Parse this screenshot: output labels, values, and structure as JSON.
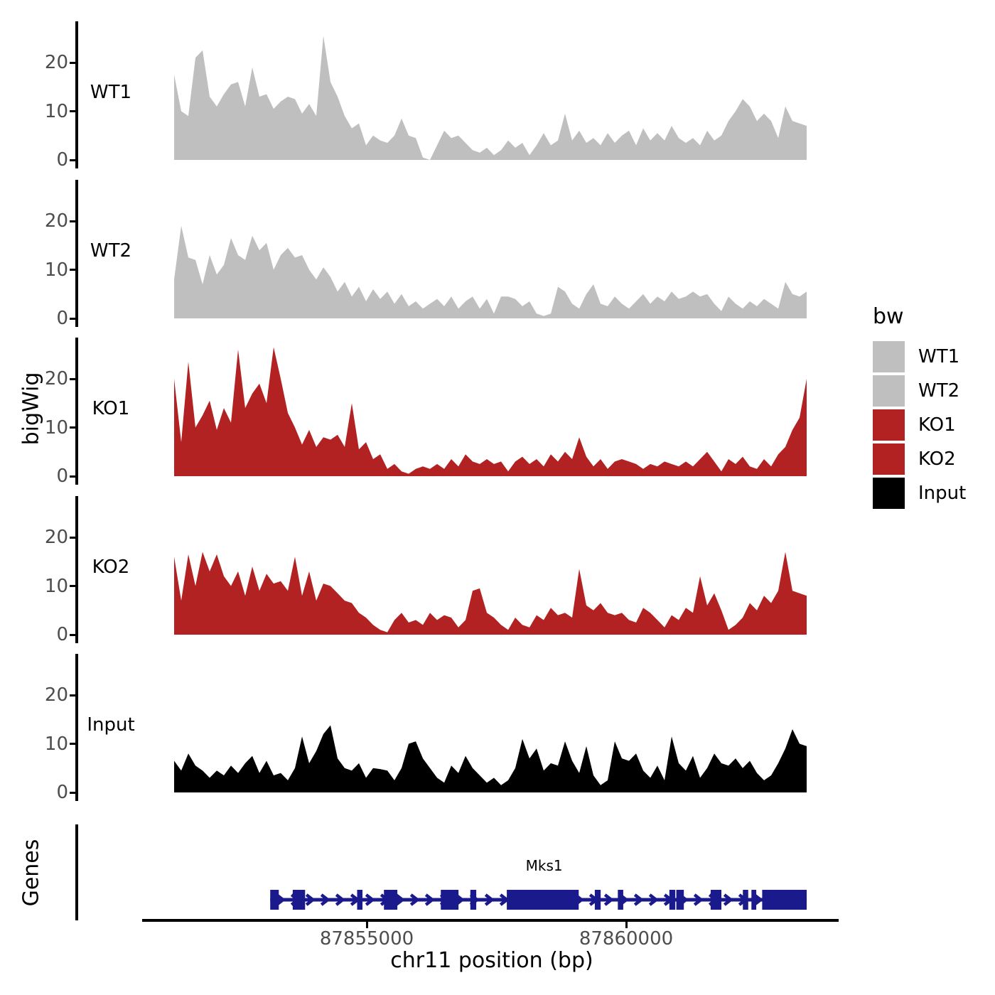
{
  "chart_data": {
    "type": "area",
    "title": "",
    "xlabel": "chr11 position (bp)",
    "ylabel": "bigWig",
    "x_ticks": [
      {
        "pos_bp": 87855000,
        "label": "87855000"
      },
      {
        "pos_bp": 87860000,
        "label": "87860000"
      }
    ],
    "x_axis_range_bp": [
      87850600,
      87864050
    ],
    "data_x_range_bp": [
      87851250,
      87863440
    ],
    "y_ticks": [
      0,
      10,
      20
    ],
    "y_tick_labels": [
      "0",
      "10",
      "20"
    ],
    "y_max": 27.7,
    "grid": "off",
    "colors": {
      "wt_gray": "#bfbfbf",
      "ko_red": "#b22222",
      "input_black": "#000000",
      "gene_navy": "#1a1a8c",
      "tick_text": "#4d4d4d"
    },
    "legend": {
      "title": "bw",
      "position": "right",
      "entries": [
        {
          "label": "WT1",
          "color": "#bfbfbf"
        },
        {
          "label": "WT2",
          "color": "#bfbfbf"
        },
        {
          "label": "KO1",
          "color": "#b22222"
        },
        {
          "label": "KO2",
          "color": "#b22222"
        },
        {
          "label": "Input",
          "color": "#000000"
        }
      ]
    },
    "tracks": [
      {
        "name": "WT1",
        "color": "#bfbfbf",
        "values": [
          17.5,
          10,
          9,
          21,
          22.5,
          13,
          11,
          13.5,
          15.5,
          16,
          11,
          19,
          13,
          13.5,
          10.5,
          12,
          13,
          12.5,
          9.5,
          11.5,
          9,
          25.5,
          16,
          13,
          9,
          6.5,
          7.5,
          3,
          5,
          4,
          3.5,
          5,
          8.5,
          5,
          4.5,
          0.5,
          0,
          3,
          6,
          4.5,
          5,
          3.5,
          2,
          1.5,
          2.5,
          1,
          2,
          4,
          2.5,
          3.5,
          1,
          3,
          5.5,
          3,
          4,
          9.5,
          4,
          6,
          3.5,
          4.5,
          3,
          5.5,
          3.5,
          5,
          6,
          3,
          6.5,
          4,
          5.5,
          4,
          7,
          4.5,
          3.5,
          4.5,
          3,
          6,
          4,
          5,
          8,
          10,
          12.5,
          11,
          8,
          9.5,
          8,
          4.5,
          11,
          8,
          7.5,
          7
        ]
      },
      {
        "name": "WT2",
        "color": "#bfbfbf",
        "values": [
          8,
          19,
          12.5,
          12,
          7,
          13,
          9,
          11,
          16.5,
          13,
          12,
          17,
          14,
          15.5,
          10,
          13,
          14.5,
          12.5,
          13,
          10,
          8,
          10.5,
          8.5,
          5.5,
          7.5,
          4.5,
          6.5,
          3.5,
          6,
          4,
          5.5,
          3,
          5,
          2.5,
          3.5,
          2,
          3,
          4,
          2.5,
          4.5,
          2,
          3.5,
          4.5,
          2,
          4,
          1,
          4.5,
          4.5,
          4,
          2.5,
          3.5,
          1,
          0.5,
          1,
          6.5,
          5.5,
          3,
          2,
          5,
          7,
          3,
          2.5,
          4.5,
          3,
          2,
          3.5,
          5,
          3,
          4.5,
          3.5,
          5.5,
          4,
          4.5,
          5.5,
          4.5,
          5,
          3,
          1.5,
          4.5,
          3,
          2,
          3.5,
          2.5,
          4,
          3,
          2,
          7.5,
          5,
          4.5,
          5.5
        ]
      },
      {
        "name": "KO1",
        "color": "#b22222",
        "values": [
          20,
          7,
          23.5,
          10,
          12.5,
          15.5,
          9.5,
          14,
          11,
          26,
          14,
          17,
          19,
          15,
          26.5,
          20,
          13,
          10,
          6.5,
          9.5,
          6,
          8,
          7.5,
          8.5,
          6,
          15,
          5.5,
          7,
          3.5,
          4.5,
          1.5,
          2.5,
          1,
          0.5,
          1.5,
          2,
          1.5,
          2.5,
          1.5,
          3.5,
          2,
          4.5,
          3,
          2.5,
          3.5,
          2.5,
          3,
          1,
          3,
          4,
          2.5,
          3.5,
          2,
          4.5,
          3,
          5,
          3.5,
          8,
          4,
          2,
          3.5,
          1.5,
          3,
          3.5,
          3,
          2.5,
          1.5,
          2.5,
          2,
          3,
          2.5,
          2,
          3,
          2,
          3.5,
          5,
          3,
          1,
          3.5,
          2.5,
          4,
          2,
          1.5,
          3.5,
          2,
          4.5,
          6,
          9.5,
          12,
          20
        ]
      },
      {
        "name": "KO2",
        "color": "#b22222",
        "values": [
          16,
          7,
          16.5,
          10,
          17,
          13,
          16.5,
          12,
          10,
          13,
          8,
          14,
          9,
          12.5,
          10.5,
          11,
          9,
          16,
          8,
          13,
          7,
          10.5,
          10,
          8.5,
          7,
          6.5,
          4.5,
          3.5,
          2,
          1,
          0.5,
          3,
          4.5,
          2.5,
          3,
          2,
          4.5,
          3,
          4,
          3.5,
          1.5,
          3,
          9,
          9.5,
          4.5,
          3.5,
          2,
          1,
          3.5,
          2,
          1.5,
          4,
          3,
          5.5,
          4,
          4.5,
          3.5,
          13.5,
          6,
          5,
          6.5,
          4.5,
          4,
          4.5,
          3,
          2.5,
          5.5,
          4.5,
          3,
          1.5,
          4,
          3,
          5.5,
          4.5,
          12,
          6,
          8.5,
          5,
          1,
          2,
          3.5,
          6.5,
          5,
          8,
          6.5,
          9,
          17,
          9,
          8.5,
          8
        ]
      },
      {
        "name": "Input",
        "color": "#000000",
        "values": [
          6.5,
          4.5,
          8,
          5.5,
          4.5,
          3,
          4.5,
          3.5,
          5.5,
          4,
          6,
          7.5,
          4,
          6.5,
          3.5,
          4,
          2.5,
          5,
          11.5,
          6,
          8.5,
          12,
          13.8,
          7,
          5,
          4.5,
          6,
          3,
          5,
          4.8,
          4.5,
          2.5,
          5,
          10,
          10.5,
          7,
          5,
          3,
          2,
          5.5,
          4,
          7.5,
          5,
          3.5,
          2,
          3,
          1.5,
          2.5,
          5,
          11,
          7,
          9,
          4.5,
          6,
          5.5,
          10.5,
          6.5,
          4,
          9.5,
          3.5,
          1.5,
          2.5,
          10.5,
          7,
          6.5,
          8,
          4.5,
          3,
          5.5,
          2.5,
          11.5,
          6,
          4.5,
          7.5,
          3,
          5,
          8,
          6,
          5.5,
          7,
          5,
          6.5,
          4,
          2.5,
          3.5,
          6,
          9,
          13,
          10,
          9.5
        ]
      }
    ],
    "genes_track": {
      "label": "Genes",
      "gene": {
        "name": "Mks1",
        "strand": "+",
        "start_bp": 87853140,
        "end_bp": 87863480,
        "color": "#1a1a8c",
        "exons_bp": [
          [
            87853140,
            87853305
          ],
          [
            87853574,
            87853812
          ],
          [
            87854815,
            87854918
          ],
          [
            87855332,
            87855590
          ],
          [
            87856428,
            87856769
          ],
          [
            87856997,
            87857111
          ],
          [
            87857700,
            87859086
          ],
          [
            87859396,
            87859509
          ],
          [
            87859840,
            87859944
          ],
          [
            87860833,
            87860947
          ],
          [
            87860967,
            87861112
          ],
          [
            87861629,
            87861836
          ],
          [
            87862250,
            87862353
          ],
          [
            87862415,
            87862508
          ],
          [
            87862622,
            87863480
          ]
        ]
      }
    }
  }
}
